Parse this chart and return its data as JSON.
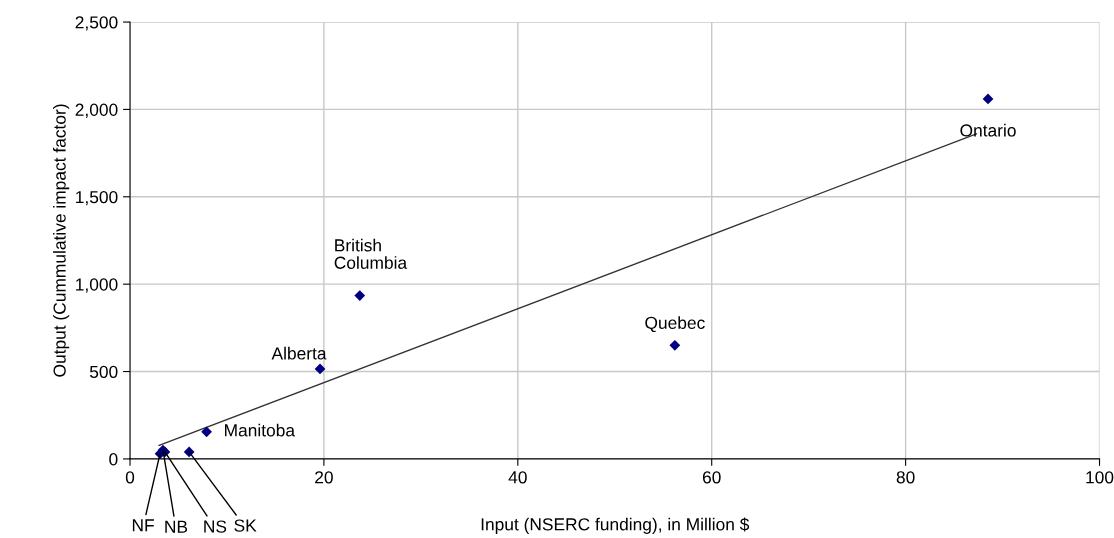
{
  "chart_data": {
    "type": "scatter",
    "xlabel": "Input (NSERC funding), in Million $",
    "ylabel": "Output (Cummulative impact factor)",
    "xlim": [
      0,
      100
    ],
    "xticks": [
      0,
      20,
      40,
      60,
      80,
      100
    ],
    "ylim": [
      0,
      2500
    ],
    "yticks": [
      0,
      500,
      {
        "value": 1000,
        "label": "1,000"
      },
      {
        "value": 1500,
        "label": "1,500"
      },
      {
        "value": 2000,
        "label": "2,000"
      },
      {
        "value": 2500,
        "label": "2,500"
      }
    ],
    "grid": true,
    "series": [
      {
        "marker": "diamond",
        "color": "#000080",
        "x": [
          3.1,
          3.4,
          3.6,
          6.1,
          7.9,
          19.6,
          23.7,
          56.2,
          88.5
        ],
        "values": [
          30,
          50,
          40,
          40,
          155,
          515,
          935,
          650,
          2060
        ]
      },
      {
        "type": "line",
        "color": "#333333",
        "x": [
          3.0,
          87.3
        ],
        "values": [
          77,
          1860
        ]
      }
    ],
    "annotations": [
      {
        "text": "Ontario",
        "x": 88.5,
        "y": 2060
      },
      {
        "text": "Quebec",
        "x": 56.2,
        "y": 650
      },
      {
        "text": "British\nColumbia",
        "x": 23.7,
        "y": 935
      },
      {
        "text": "Alberta",
        "x": 19.6,
        "y": 515
      },
      {
        "text": "Manitoba",
        "x": 7.9,
        "y": 155
      },
      {
        "text": "NF",
        "x": 3.1,
        "y": 30
      },
      {
        "text": "NB",
        "x": 3.4,
        "y": 50
      },
      {
        "text": "NS",
        "x": 3.6,
        "y": 40
      },
      {
        "text": "SK",
        "x": 6.1,
        "y": 40
      }
    ]
  }
}
